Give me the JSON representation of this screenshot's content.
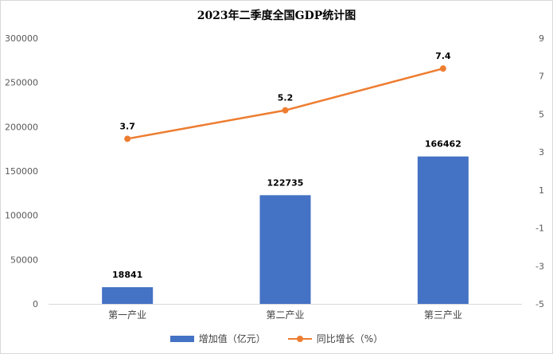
{
  "chart_data": {
    "type": "bar",
    "title": "2023年二季度全国GDP统计图",
    "categories": [
      "第一产业",
      "第二产业",
      "第三产业"
    ],
    "series": [
      {
        "name": "增加值（亿元）",
        "type": "bar",
        "axis": "left",
        "color": "#4472c4",
        "values": [
          18841,
          122735,
          166462
        ],
        "labels": [
          "18841",
          "122735",
          "166462"
        ]
      },
      {
        "name": "同比增长（%）",
        "type": "line",
        "axis": "right",
        "color": "#ed7d31",
        "values": [
          3.7,
          5.2,
          7.4
        ],
        "labels": [
          "3.7",
          "5.2",
          "7.4"
        ]
      }
    ],
    "y_left": {
      "min": 0,
      "max": 300000,
      "step": 50000,
      "ticks": [
        "0",
        "50000",
        "100000",
        "150000",
        "200000",
        "250000",
        "300000"
      ]
    },
    "y_right": {
      "min": -5,
      "max": 9,
      "step": 2,
      "ticks": [
        "-5",
        "-3",
        "-1",
        "1",
        "3",
        "5",
        "7",
        "9"
      ]
    },
    "legend_position": "bottom",
    "grid": false
  }
}
